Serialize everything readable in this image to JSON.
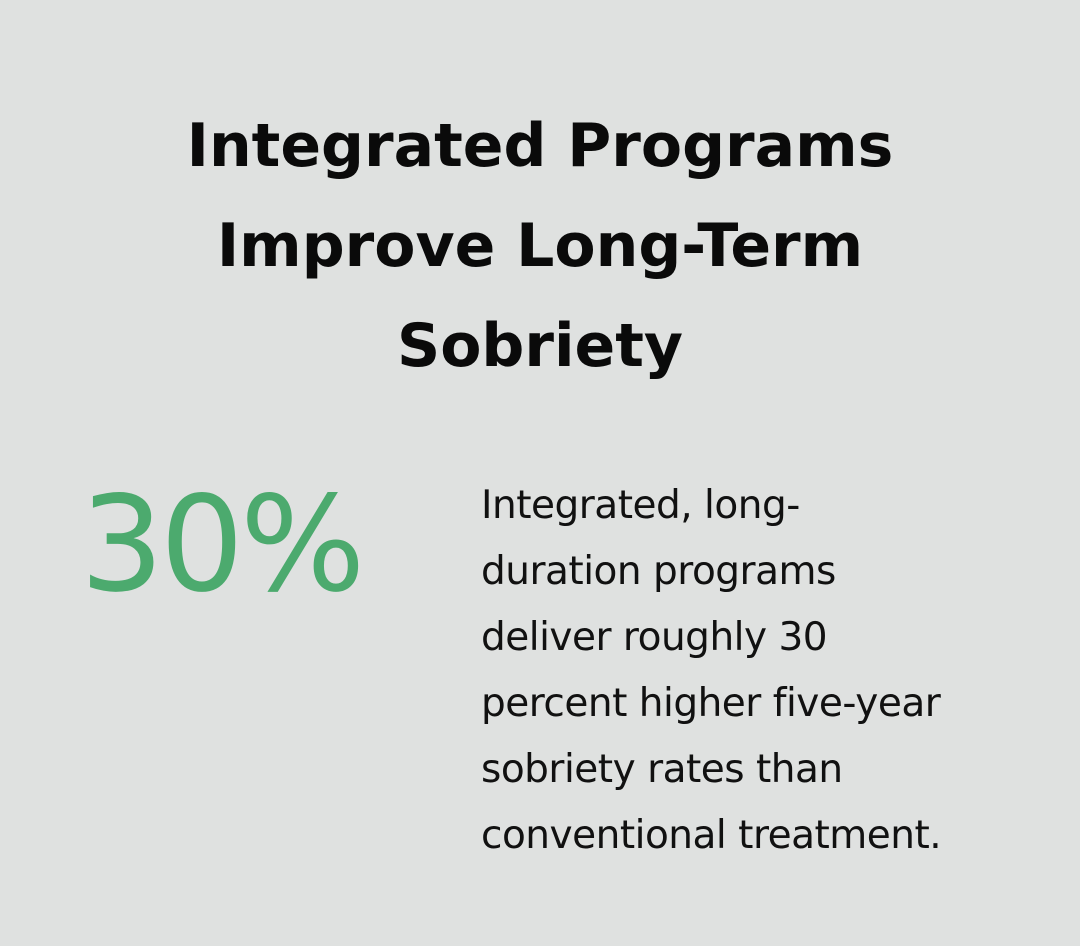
{
  "card": {
    "title_lines": [
      "Integrated Programs",
      "Improve Long-Term",
      "Sobriety"
    ],
    "stat_value": "30%",
    "description_lines": [
      "Integrated, long-",
      "duration programs",
      "deliver roughly 30",
      "percent higher five-year",
      "sobriety rates than",
      "conventional treatment."
    ]
  },
  "colors": {
    "background": "#dfe1e0",
    "title": "#0a0a0a",
    "accent": "#4caa6e",
    "body_text": "#111111"
  }
}
